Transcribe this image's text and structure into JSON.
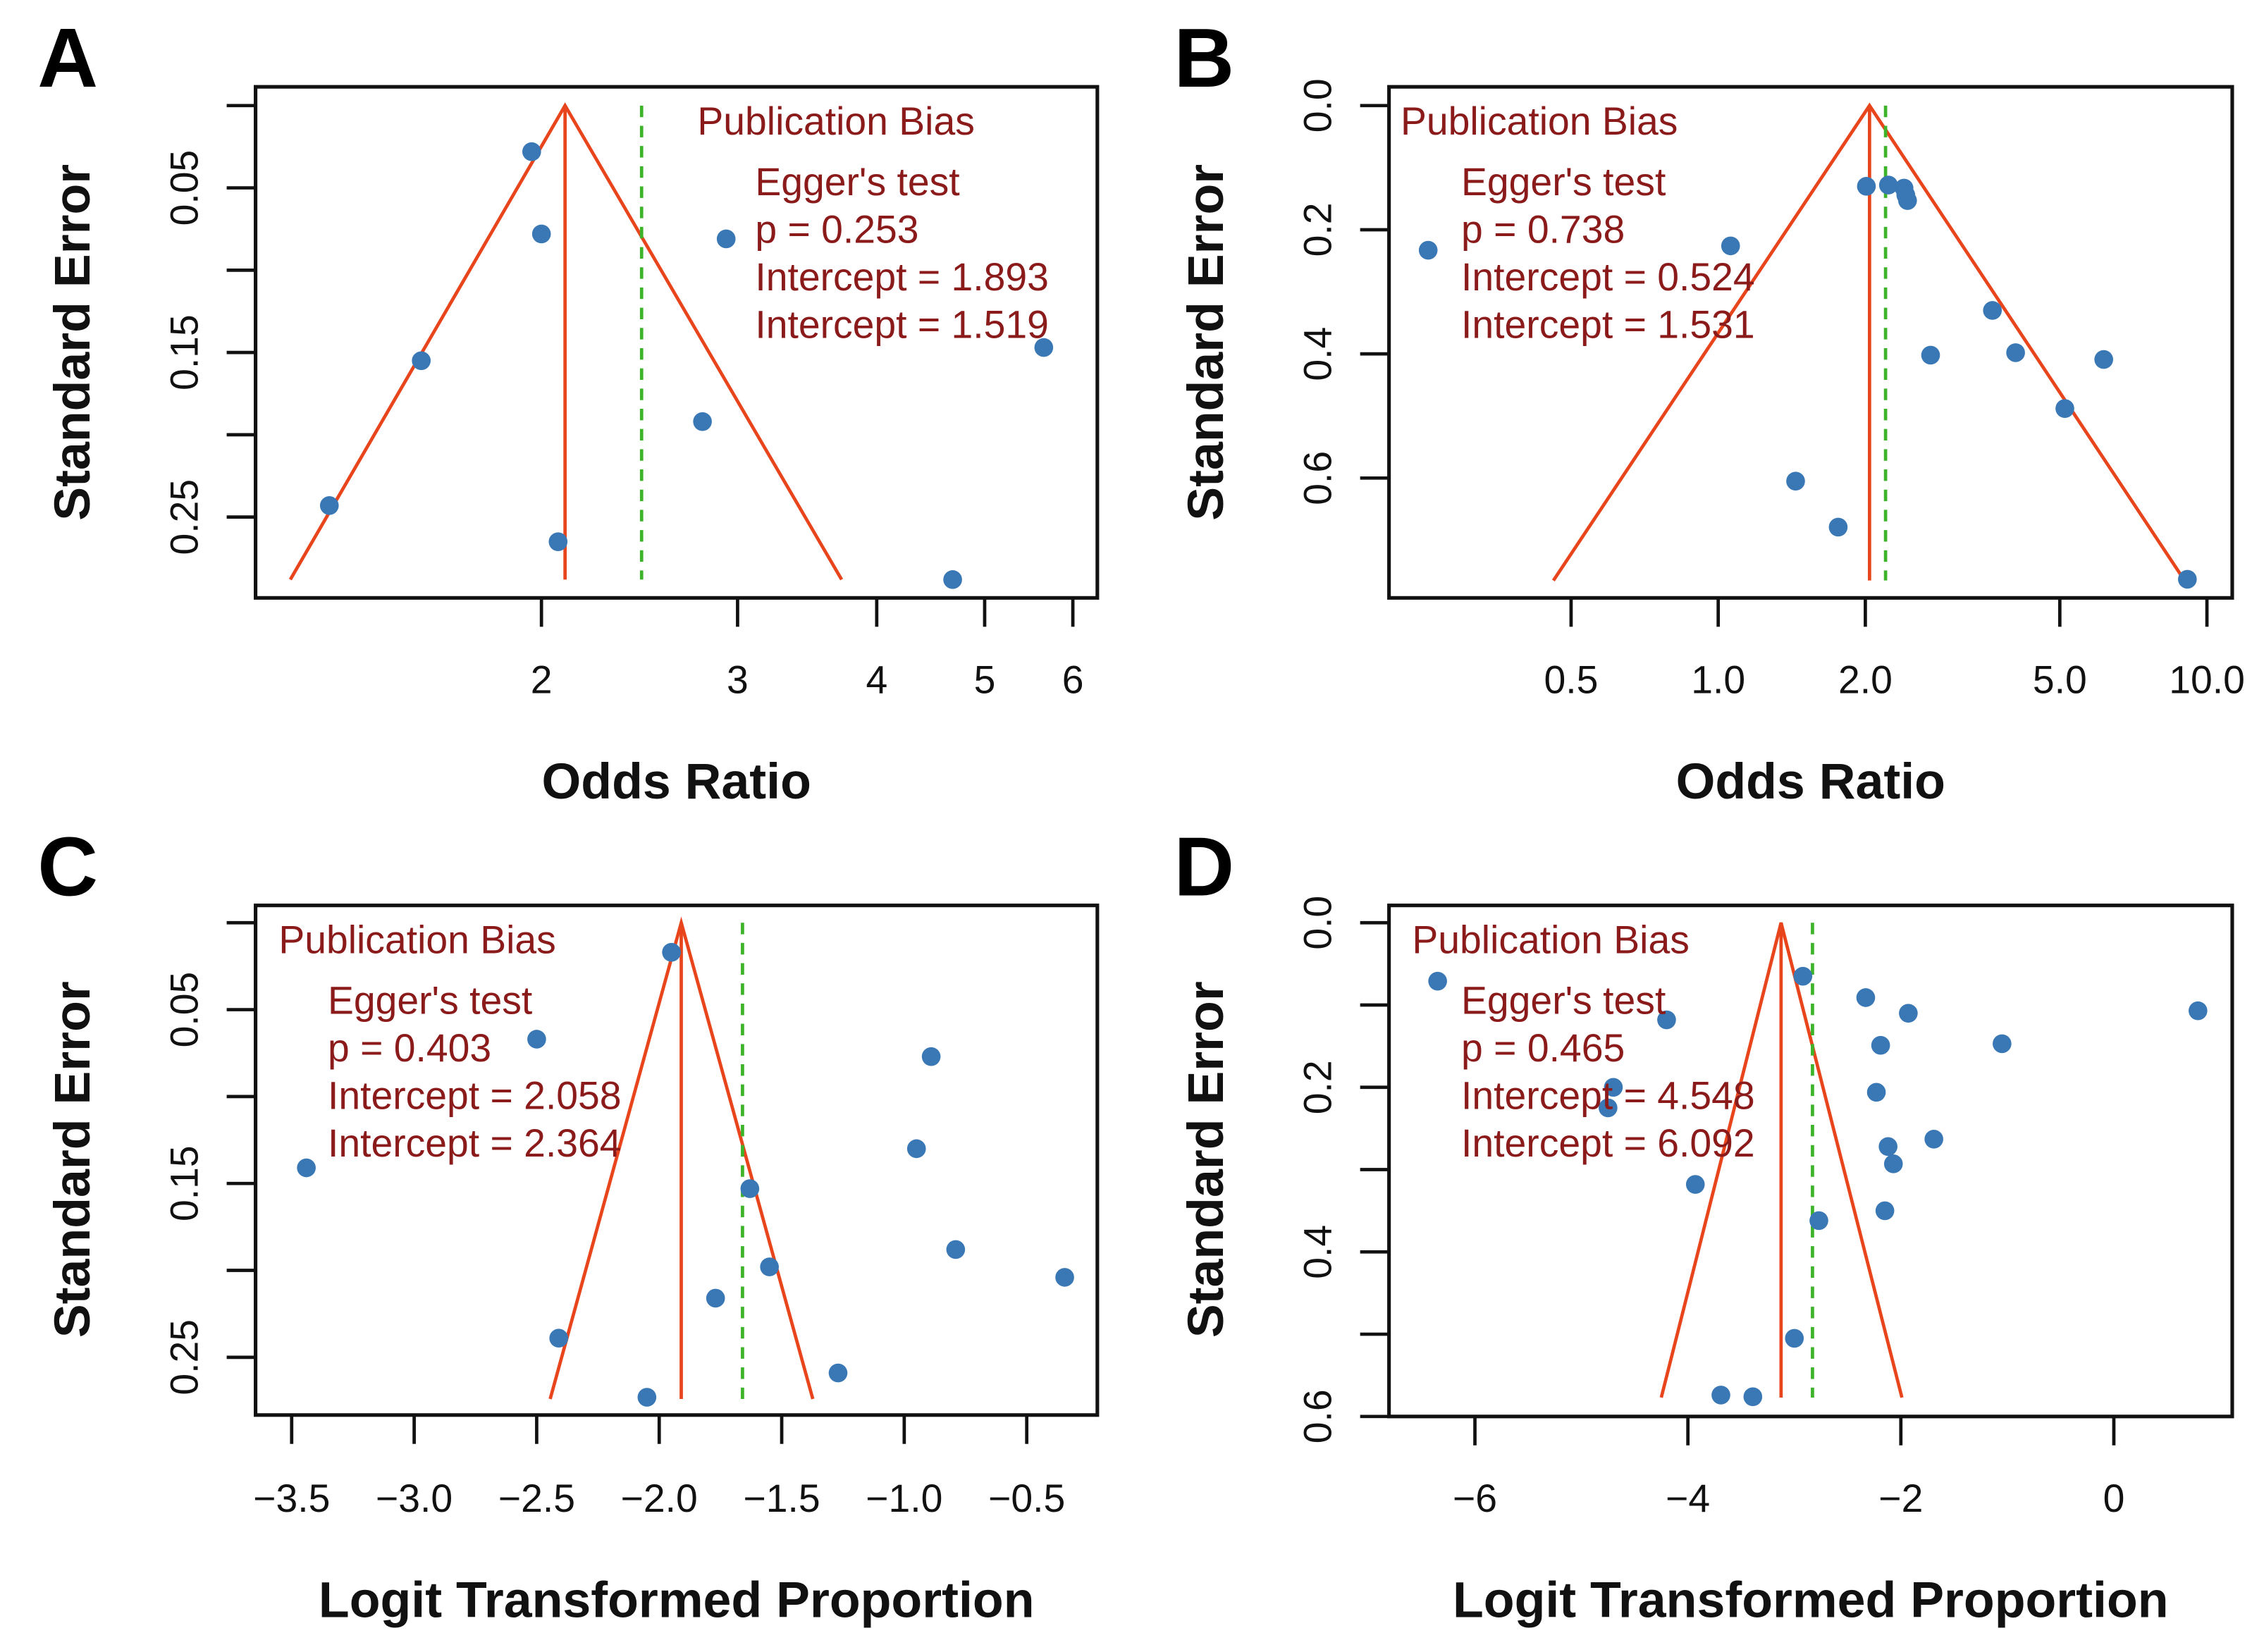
{
  "colors": {
    "point": "#3A78B5",
    "funnel": "#E8451C",
    "dashed": "#3DB32A",
    "annotation": "#8B1A1A",
    "axis": "#111111"
  },
  "chart_data": [
    {
      "panel": "A",
      "type": "scatter",
      "xlabel": "Odds Ratio",
      "ylabel": "Standard Error",
      "x_scale": "log",
      "y_reversed": true,
      "ylim": [
        0,
        0.29
      ],
      "x_ticks": [
        {
          "v": 2,
          "label": "2"
        },
        {
          "v": 3,
          "label": "3"
        },
        {
          "v": 4,
          "label": "4"
        },
        {
          "v": 5,
          "label": "5"
        },
        {
          "v": 6,
          "label": "6"
        }
      ],
      "y_ticks": [
        {
          "v": 0,
          "label": ""
        },
        {
          "v": 0.05,
          "label": "0.05"
        },
        {
          "v": 0.1,
          "label": ""
        },
        {
          "v": 0.15,
          "label": "0.15"
        },
        {
          "v": 0.2,
          "label": ""
        },
        {
          "v": 0.25,
          "label": "0.25"
        }
      ],
      "points": [
        [
          1.96,
          0.028
        ],
        [
          2.0,
          0.078
        ],
        [
          2.93,
          0.081
        ],
        [
          1.56,
          0.155
        ],
        [
          5.65,
          0.147
        ],
        [
          2.79,
          0.192
        ],
        [
          1.29,
          0.243
        ],
        [
          2.07,
          0.265
        ],
        [
          4.68,
          0.288
        ]
      ],
      "funnel": {
        "center": 2.1,
        "se_max": 0.288,
        "lower": 1.19,
        "upper": 3.72
      },
      "dashed_x": 2.46,
      "annotation": {
        "title": "Publication Bias",
        "lines": [
          "Egger's test",
          "p = 0.253",
          "Intercept = 1.893",
          "Intercept = 1.519"
        ]
      }
    },
    {
      "panel": "B",
      "type": "scatter",
      "xlabel": "Odds Ratio",
      "ylabel": "Standard Error",
      "x_scale": "log",
      "y_reversed": true,
      "ylim": [
        0,
        0.78
      ],
      "x_ticks": [
        {
          "v": 0.5,
          "label": "0.5"
        },
        {
          "v": 1,
          "label": "1.0"
        },
        {
          "v": 2,
          "label": "2.0"
        },
        {
          "v": 5,
          "label": "5.0"
        },
        {
          "v": 10,
          "label": "10.0"
        }
      ],
      "y_ticks": [
        {
          "v": 0,
          "label": "0.0"
        },
        {
          "v": 0.2,
          "label": "0.2"
        },
        {
          "v": 0.4,
          "label": "0.4"
        },
        {
          "v": 0.6,
          "label": "0.6"
        }
      ],
      "points": [
        [
          0.255,
          0.233
        ],
        [
          1.06,
          0.226
        ],
        [
          2.01,
          0.13
        ],
        [
          2.23,
          0.128
        ],
        [
          2.4,
          0.133
        ],
        [
          2.42,
          0.144
        ],
        [
          2.44,
          0.153
        ],
        [
          3.64,
          0.33
        ],
        [
          2.72,
          0.402
        ],
        [
          4.06,
          0.398
        ],
        [
          6.15,
          0.409
        ],
        [
          5.12,
          0.488
        ],
        [
          1.44,
          0.605
        ],
        [
          1.76,
          0.679
        ],
        [
          9.12,
          0.763
        ]
      ],
      "funnel": {
        "center": 2.04,
        "se_max": 0.765,
        "lower": 0.46,
        "upper": 9.0
      },
      "dashed_x": 2.2,
      "annotation": {
        "title": "Publication Bias",
        "lines": [
          "Egger's test",
          "p = 0.738",
          "Intercept = 0.524",
          "Intercept = 1.531"
        ]
      }
    },
    {
      "panel": "C",
      "type": "scatter",
      "xlabel": "Logit Transformed Proportion",
      "ylabel": "Standard Error",
      "x_scale": "linear",
      "y_reversed": true,
      "ylim": [
        0,
        0.28
      ],
      "x_ticks": [
        {
          "v": -3.5,
          "label": "−3.5"
        },
        {
          "v": -3.0,
          "label": "−3.0"
        },
        {
          "v": -2.5,
          "label": "−2.5"
        },
        {
          "v": -2.0,
          "label": "−2.0"
        },
        {
          "v": -1.5,
          "label": "−1.5"
        },
        {
          "v": -1.0,
          "label": "−1.0"
        },
        {
          "v": -0.5,
          "label": "−0.5"
        }
      ],
      "y_ticks": [
        {
          "v": 0,
          "label": ""
        },
        {
          "v": 0.05,
          "label": "0.05"
        },
        {
          "v": 0.1,
          "label": ""
        },
        {
          "v": 0.15,
          "label": "0.15"
        },
        {
          "v": 0.2,
          "label": ""
        },
        {
          "v": 0.25,
          "label": "0.25"
        }
      ],
      "points": [
        [
          -1.95,
          0.017
        ],
        [
          -2.5,
          0.067
        ],
        [
          -0.89,
          0.077
        ],
        [
          -3.44,
          0.141
        ],
        [
          -0.95,
          0.13
        ],
        [
          -1.63,
          0.153
        ],
        [
          -0.79,
          0.188
        ],
        [
          -1.55,
          0.198
        ],
        [
          -0.345,
          0.204
        ],
        [
          -1.77,
          0.216
        ],
        [
          -2.41,
          0.239
        ],
        [
          -1.27,
          0.259
        ],
        [
          -2.05,
          0.273
        ]
      ],
      "funnel": {
        "center": -1.91,
        "se_max": 0.274,
        "lower": -2.445,
        "upper": -1.373
      },
      "dashed_x": -1.66,
      "annotation": {
        "title": "Publication Bias",
        "lines": [
          "Egger's test",
          "p = 0.403",
          "Intercept = 2.058",
          "Intercept = 2.364"
        ]
      }
    },
    {
      "panel": "D",
      "type": "scatter",
      "xlabel": "Logit Transformed Proportion",
      "ylabel": "Standard Error",
      "x_scale": "linear",
      "y_reversed": true,
      "ylim": [
        0,
        0.6
      ],
      "x_ticks": [
        {
          "v": -6,
          "label": "−6"
        },
        {
          "v": -4,
          "label": "−4"
        },
        {
          "v": -2,
          "label": "−2"
        },
        {
          "v": 0,
          "label": "0"
        }
      ],
      "y_ticks": [
        {
          "v": 0,
          "label": "0.0"
        },
        {
          "v": 0.1,
          "label": ""
        },
        {
          "v": 0.2,
          "label": "0.2"
        },
        {
          "v": 0.3,
          "label": ""
        },
        {
          "v": 0.4,
          "label": "0.4"
        },
        {
          "v": 0.5,
          "label": ""
        },
        {
          "v": 0.6,
          "label": "0.6"
        }
      ],
      "points": [
        [
          -6.35,
          0.071
        ],
        [
          -2.92,
          0.065
        ],
        [
          -2.33,
          0.091
        ],
        [
          -1.93,
          0.11
        ],
        [
          0.79,
          0.107
        ],
        [
          -4.2,
          0.118
        ],
        [
          -2.19,
          0.149
        ],
        [
          -1.05,
          0.147
        ],
        [
          -4.7,
          0.2
        ],
        [
          -4.75,
          0.225
        ],
        [
          -2.23,
          0.206
        ],
        [
          -1.69,
          0.263
        ],
        [
          -2.12,
          0.272
        ],
        [
          -2.07,
          0.293
        ],
        [
          -3.93,
          0.318
        ],
        [
          -2.15,
          0.35
        ],
        [
          -2.77,
          0.362
        ],
        [
          -3.0,
          0.505
        ],
        [
          -3.69,
          0.574
        ],
        [
          -3.39,
          0.576
        ]
      ],
      "funnel": {
        "center": -3.125,
        "se_max": 0.577,
        "lower": -4.25,
        "upper": -1.99
      },
      "dashed_x": -2.83,
      "annotation": {
        "title": "Publication Bias",
        "lines": [
          "Egger's test",
          "p = 0.465",
          "Intercept = 4.548",
          "Intercept = 6.092"
        ]
      }
    }
  ]
}
